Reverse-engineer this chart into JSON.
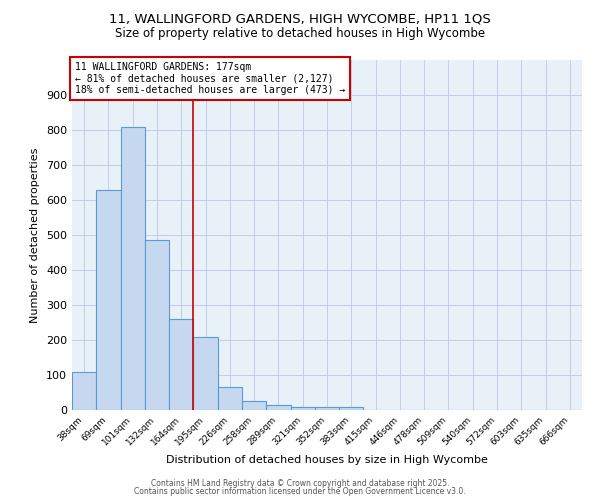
{
  "title_line1": "11, WALLINGFORD GARDENS, HIGH WYCOMBE, HP11 1QS",
  "title_line2": "Size of property relative to detached houses in High Wycombe",
  "xlabel": "Distribution of detached houses by size in High Wycombe",
  "ylabel": "Number of detached properties",
  "categories": [
    "38sqm",
    "69sqm",
    "101sqm",
    "132sqm",
    "164sqm",
    "195sqm",
    "226sqm",
    "258sqm",
    "289sqm",
    "321sqm",
    "352sqm",
    "383sqm",
    "415sqm",
    "446sqm",
    "478sqm",
    "509sqm",
    "540sqm",
    "572sqm",
    "603sqm",
    "635sqm",
    "666sqm"
  ],
  "values": [
    110,
    630,
    810,
    485,
    260,
    210,
    65,
    25,
    15,
    10,
    8,
    8,
    0,
    0,
    0,
    0,
    0,
    0,
    0,
    0,
    0
  ],
  "bar_color": "#c5d8f0",
  "bar_edge_color": "#5b9bd5",
  "bar_edge_width": 0.8,
  "red_line_x": 4.5,
  "annotation_text": "11 WALLINGFORD GARDENS: 177sqm\n← 81% of detached houses are smaller (2,127)\n18% of semi-detached houses are larger (473) →",
  "annotation_box_color": "white",
  "annotation_box_edge_color": "#cc0000",
  "ylim": [
    0,
    1000
  ],
  "yticks": [
    0,
    100,
    200,
    300,
    400,
    500,
    600,
    700,
    800,
    900
  ],
  "grid_color": "#c0d0e8",
  "background_color": "white",
  "plot_bg_color": "#e8f0f8",
  "footer_line1": "Contains HM Land Registry data © Crown copyright and database right 2025.",
  "footer_line2": "Contains public sector information licensed under the Open Government Licence v3.0."
}
